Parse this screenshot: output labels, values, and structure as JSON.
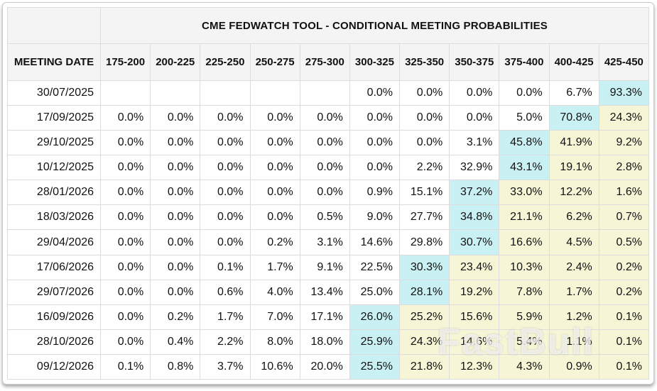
{
  "header": {
    "title": "CME FEDWATCH TOOL - CONDITIONAL MEETING PROBABILITIES",
    "date_column": "MEETING DATE",
    "rate_columns": [
      "175-200",
      "200-225",
      "225-250",
      "250-275",
      "275-300",
      "300-325",
      "325-350",
      "350-375",
      "375-400",
      "400-425",
      "425-450"
    ]
  },
  "watermark": "FastBull",
  "colors": {
    "highlight_cyan": "#c9f0f3",
    "highlight_yellow": "#f6f6d7",
    "header_bg": "#f4f4f4",
    "grid_line": "#dcdcdc"
  },
  "table": {
    "rows": [
      {
        "date": "30/07/2025",
        "values": [
          "",
          "",
          "",
          "",
          "",
          "0.0%",
          "0.0%",
          "0.0%",
          "0.0%",
          "6.7%",
          "93.3%"
        ],
        "highlight": [
          "",
          "",
          "",
          "",
          "",
          "",
          "",
          "",
          "",
          "",
          "c"
        ]
      },
      {
        "date": "17/09/2025",
        "values": [
          "0.0%",
          "0.0%",
          "0.0%",
          "0.0%",
          "0.0%",
          "0.0%",
          "0.0%",
          "0.0%",
          "5.0%",
          "70.8%",
          "24.3%"
        ],
        "highlight": [
          "",
          "",
          "",
          "",
          "",
          "",
          "",
          "",
          "",
          "c",
          "y"
        ]
      },
      {
        "date": "29/10/2025",
        "values": [
          "0.0%",
          "0.0%",
          "0.0%",
          "0.0%",
          "0.0%",
          "0.0%",
          "0.0%",
          "3.1%",
          "45.8%",
          "41.9%",
          "9.2%"
        ],
        "highlight": [
          "",
          "",
          "",
          "",
          "",
          "",
          "",
          "",
          "c",
          "y",
          "y"
        ]
      },
      {
        "date": "10/12/2025",
        "values": [
          "0.0%",
          "0.0%",
          "0.0%",
          "0.0%",
          "0.0%",
          "0.0%",
          "2.2%",
          "32.9%",
          "43.1%",
          "19.1%",
          "2.8%"
        ],
        "highlight": [
          "",
          "",
          "",
          "",
          "",
          "",
          "",
          "",
          "c",
          "y",
          "y"
        ]
      },
      {
        "date": "28/01/2026",
        "values": [
          "0.0%",
          "0.0%",
          "0.0%",
          "0.0%",
          "0.0%",
          "0.9%",
          "15.1%",
          "37.2%",
          "33.0%",
          "12.2%",
          "1.6%"
        ],
        "highlight": [
          "",
          "",
          "",
          "",
          "",
          "",
          "",
          "c",
          "y",
          "y",
          "y"
        ]
      },
      {
        "date": "18/03/2026",
        "values": [
          "0.0%",
          "0.0%",
          "0.0%",
          "0.0%",
          "0.5%",
          "9.0%",
          "27.7%",
          "34.8%",
          "21.1%",
          "6.2%",
          "0.7%"
        ],
        "highlight": [
          "",
          "",
          "",
          "",
          "",
          "",
          "",
          "c",
          "y",
          "y",
          "y"
        ]
      },
      {
        "date": "29/04/2026",
        "values": [
          "0.0%",
          "0.0%",
          "0.0%",
          "0.2%",
          "3.1%",
          "14.6%",
          "29.8%",
          "30.7%",
          "16.6%",
          "4.5%",
          "0.5%"
        ],
        "highlight": [
          "",
          "",
          "",
          "",
          "",
          "",
          "",
          "c",
          "y",
          "y",
          "y"
        ]
      },
      {
        "date": "17/06/2026",
        "values": [
          "0.0%",
          "0.0%",
          "0.1%",
          "1.7%",
          "9.1%",
          "22.5%",
          "30.3%",
          "23.4%",
          "10.3%",
          "2.4%",
          "0.2%"
        ],
        "highlight": [
          "",
          "",
          "",
          "",
          "",
          "",
          "c",
          "y",
          "y",
          "y",
          "y"
        ]
      },
      {
        "date": "29/07/2026",
        "values": [
          "0.0%",
          "0.0%",
          "0.6%",
          "4.0%",
          "13.4%",
          "25.0%",
          "28.1%",
          "19.2%",
          "7.8%",
          "1.7%",
          "0.2%"
        ],
        "highlight": [
          "",
          "",
          "",
          "",
          "",
          "",
          "c",
          "y",
          "y",
          "y",
          "y"
        ]
      },
      {
        "date": "16/09/2026",
        "values": [
          "0.0%",
          "0.2%",
          "1.7%",
          "7.0%",
          "17.1%",
          "26.0%",
          "25.2%",
          "15.6%",
          "5.9%",
          "1.2%",
          "0.1%"
        ],
        "highlight": [
          "",
          "",
          "",
          "",
          "",
          "c",
          "y",
          "y",
          "y",
          "y",
          "y"
        ]
      },
      {
        "date": "28/10/2026",
        "values": [
          "0.0%",
          "0.4%",
          "2.2%",
          "8.0%",
          "18.0%",
          "25.9%",
          "24.3%",
          "14.6%",
          "5.4%",
          "1.1%",
          "0.1%"
        ],
        "highlight": [
          "",
          "",
          "",
          "",
          "",
          "c",
          "y",
          "y",
          "y",
          "y",
          "y"
        ]
      },
      {
        "date": "09/12/2026",
        "values": [
          "0.1%",
          "0.8%",
          "3.7%",
          "10.6%",
          "20.0%",
          "25.5%",
          "21.8%",
          "12.3%",
          "4.3%",
          "0.9%",
          "0.1%"
        ],
        "highlight": [
          "",
          "",
          "",
          "",
          "",
          "c",
          "y",
          "y",
          "y",
          "y",
          "y"
        ]
      }
    ]
  },
  "chart_data": {
    "type": "table",
    "title": "CME FEDWATCH TOOL - CONDITIONAL MEETING PROBABILITIES",
    "row_label": "MEETING DATE",
    "columns": [
      "175-200",
      "200-225",
      "225-250",
      "250-275",
      "275-300",
      "300-325",
      "325-350",
      "350-375",
      "375-400",
      "400-425",
      "425-450"
    ],
    "rows": [
      "30/07/2025",
      "17/09/2025",
      "29/10/2025",
      "10/12/2025",
      "28/01/2026",
      "18/03/2026",
      "29/04/2026",
      "17/06/2026",
      "29/07/2026",
      "16/09/2026",
      "28/10/2026",
      "09/12/2026"
    ],
    "values_percent": [
      [
        null,
        null,
        null,
        null,
        null,
        0.0,
        0.0,
        0.0,
        0.0,
        6.7,
        93.3
      ],
      [
        0.0,
        0.0,
        0.0,
        0.0,
        0.0,
        0.0,
        0.0,
        0.0,
        5.0,
        70.8,
        24.3
      ],
      [
        0.0,
        0.0,
        0.0,
        0.0,
        0.0,
        0.0,
        0.0,
        3.1,
        45.8,
        41.9,
        9.2
      ],
      [
        0.0,
        0.0,
        0.0,
        0.0,
        0.0,
        0.0,
        2.2,
        32.9,
        43.1,
        19.1,
        2.8
      ],
      [
        0.0,
        0.0,
        0.0,
        0.0,
        0.0,
        0.9,
        15.1,
        37.2,
        33.0,
        12.2,
        1.6
      ],
      [
        0.0,
        0.0,
        0.0,
        0.0,
        0.5,
        9.0,
        27.7,
        34.8,
        21.1,
        6.2,
        0.7
      ],
      [
        0.0,
        0.0,
        0.0,
        0.2,
        3.1,
        14.6,
        29.8,
        30.7,
        16.6,
        4.5,
        0.5
      ],
      [
        0.0,
        0.0,
        0.1,
        1.7,
        9.1,
        22.5,
        30.3,
        23.4,
        10.3,
        2.4,
        0.2
      ],
      [
        0.0,
        0.0,
        0.6,
        4.0,
        13.4,
        25.0,
        28.1,
        19.2,
        7.8,
        1.7,
        0.2
      ],
      [
        0.0,
        0.2,
        1.7,
        7.0,
        17.1,
        26.0,
        25.2,
        15.6,
        5.9,
        1.2,
        0.1
      ],
      [
        0.0,
        0.4,
        2.2,
        8.0,
        18.0,
        25.9,
        24.3,
        14.6,
        5.4,
        1.1,
        0.1
      ],
      [
        0.1,
        0.8,
        3.7,
        10.6,
        20.0,
        25.5,
        21.8,
        12.3,
        4.3,
        0.9,
        0.1
      ]
    ],
    "highlight_legend": {
      "c": "cyan = highest-probability cell in row",
      "y": "yellow = cells above the modal rate range"
    }
  }
}
